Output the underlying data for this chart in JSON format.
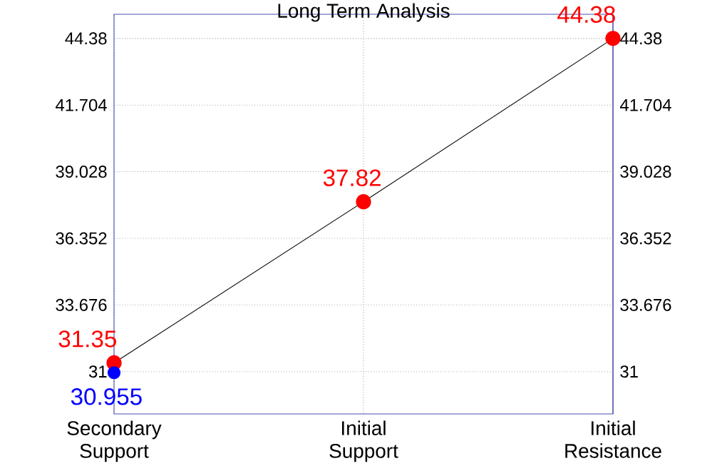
{
  "chart_data": {
    "type": "line",
    "title": "Long Term Analysis",
    "categories": [
      "Secondary Support",
      "Initial Support",
      "Initial Resistance"
    ],
    "series": [
      {
        "color": "#000000",
        "colors": [
          "#ff0000",
          "#ff0000",
          "#ff0000"
        ],
        "values": [
          31.35,
          37.82,
          44.38
        ]
      },
      {
        "type": "scatter",
        "color": "#0000ff",
        "x": [
          "Secondary Support"
        ],
        "values": [
          30.955
        ]
      }
    ],
    "ylim": [
      29.3,
      45.35
    ],
    "yticks": [
      31,
      33.676,
      36.352,
      39.028,
      41.704,
      44.38
    ],
    "y2lim": [
      29.3,
      45.35
    ],
    "y2ticks": [
      31,
      33.676,
      36.352,
      39.028,
      41.704,
      44.38
    ],
    "grid": true,
    "marker": "circle",
    "data_labels": true
  }
}
